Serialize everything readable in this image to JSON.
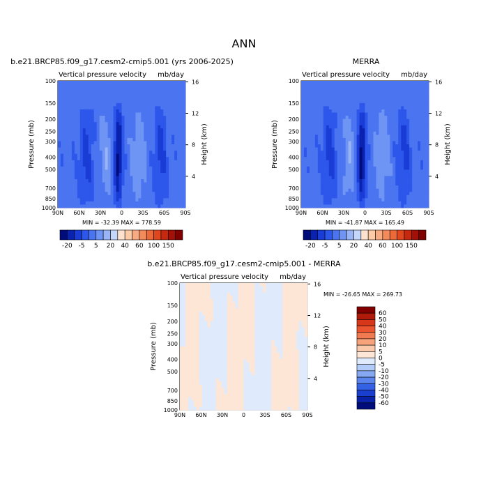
{
  "page": {
    "title": "ANN",
    "font_note": ""
  },
  "colors": {
    "blue_scale": [
      "#000c7a",
      "#0a22b0",
      "#1a3cd6",
      "#2d57ea",
      "#4a74f0",
      "#6e94f4",
      "#9ab5f6",
      "#c4d6fa",
      "#e3ecfc"
    ],
    "red_scale": [
      "#fde3cf",
      "#fbcba8",
      "#f7ab82",
      "#f28a5c",
      "#ec6a3a",
      "#e0471f",
      "#c72810",
      "#a31008",
      "#800000"
    ],
    "frame": "#000000",
    "colorbar_edge": "#000000"
  },
  "chart_data": [
    {
      "type": "heatmap",
      "name_key": "model",
      "title": "b.e21.BRCP85.f09_g17.cesm2-cmip5.001 (yrs 2006-2025)",
      "left_label": "Vertical pressure velocity",
      "right_label": "mb/day",
      "ylabel": "Pressure (mb)",
      "y2label": "Height (km)",
      "x_ticks": [
        "90N",
        "60N",
        "30N",
        "0",
        "30S",
        "60S",
        "90S"
      ],
      "y_ticks": [
        100,
        150,
        200,
        250,
        300,
        400,
        500,
        700,
        850,
        1000
      ],
      "y2_ticks": [
        4,
        8,
        12,
        16
      ],
      "min_label": "MIN = -32.39",
      "max_label": "MAX = 778.59",
      "min": -32.39,
      "max": 778.59
    },
    {
      "type": "heatmap",
      "name_key": "obs",
      "title": "MERRA",
      "left_label": "Vertical pressure velocity",
      "right_label": "mb/day",
      "ylabel": "Pressure (mb)",
      "y2label": "Height (km)",
      "x_ticks": [
        "90N",
        "60N",
        "30N",
        "0",
        "30S",
        "60S",
        "90S"
      ],
      "y_ticks": [
        100,
        150,
        200,
        250,
        300,
        400,
        500,
        700,
        850,
        1000
      ],
      "y2_ticks": [
        4,
        8,
        12,
        16
      ],
      "min_label": "MIN = -41.87",
      "max_label": "MAX = 165.49",
      "min": -41.87,
      "max": 165.49
    },
    {
      "type": "heatmap",
      "name_key": "diff",
      "title": "b.e21.BRCP85.f09_g17.cesm2-cmip5.001 - MERRA",
      "left_label": "Vertical pressure velocity",
      "right_label": "mb/day",
      "ylabel": "Pressure (mb)",
      "y2label": "Height (km)",
      "x_ticks": [
        "90N",
        "60N",
        "30N",
        "0",
        "30S",
        "60S",
        "90S"
      ],
      "y_ticks": [
        100,
        150,
        200,
        250,
        300,
        400,
        500,
        700,
        850,
        1000
      ],
      "y2_ticks": [
        4,
        8,
        12,
        16
      ],
      "min_label": "MIN = -26.65",
      "max_label": "MAX = 269.73",
      "min": -26.65,
      "max": 269.73
    }
  ],
  "colorbars": {
    "shared": {
      "labels": [
        "-20",
        "-5",
        "5",
        "20",
        "40",
        "60",
        "100",
        "150"
      ],
      "colors": [
        "#000c7a",
        "#0a22b0",
        "#1a3cd6",
        "#2d57ea",
        "#4a74f0",
        "#6e94f4",
        "#9ab5f6",
        "#c4d6fa",
        "#fde3cf",
        "#fbcba8",
        "#f7ab82",
        "#f28a5c",
        "#ec6a3a",
        "#e0471f",
        "#c72810",
        "#a31008",
        "#800000"
      ]
    },
    "diff": {
      "labels": [
        "60",
        "50",
        "40",
        "30",
        "20",
        "10",
        "5",
        "0",
        "-5",
        "-10",
        "-20",
        "-30",
        "-40",
        "-50",
        "-60"
      ],
      "colors": [
        "#800000",
        "#b01a0a",
        "#d6361a",
        "#ea5530",
        "#f27a50",
        "#f6a37c",
        "#fac9ab",
        "#fde6d6",
        "#dfeafd",
        "#b3cbf8",
        "#86a8f2",
        "#5b84ec",
        "#3561e4",
        "#1a3fcf",
        "#0a22a8",
        "#000c7a"
      ]
    }
  }
}
